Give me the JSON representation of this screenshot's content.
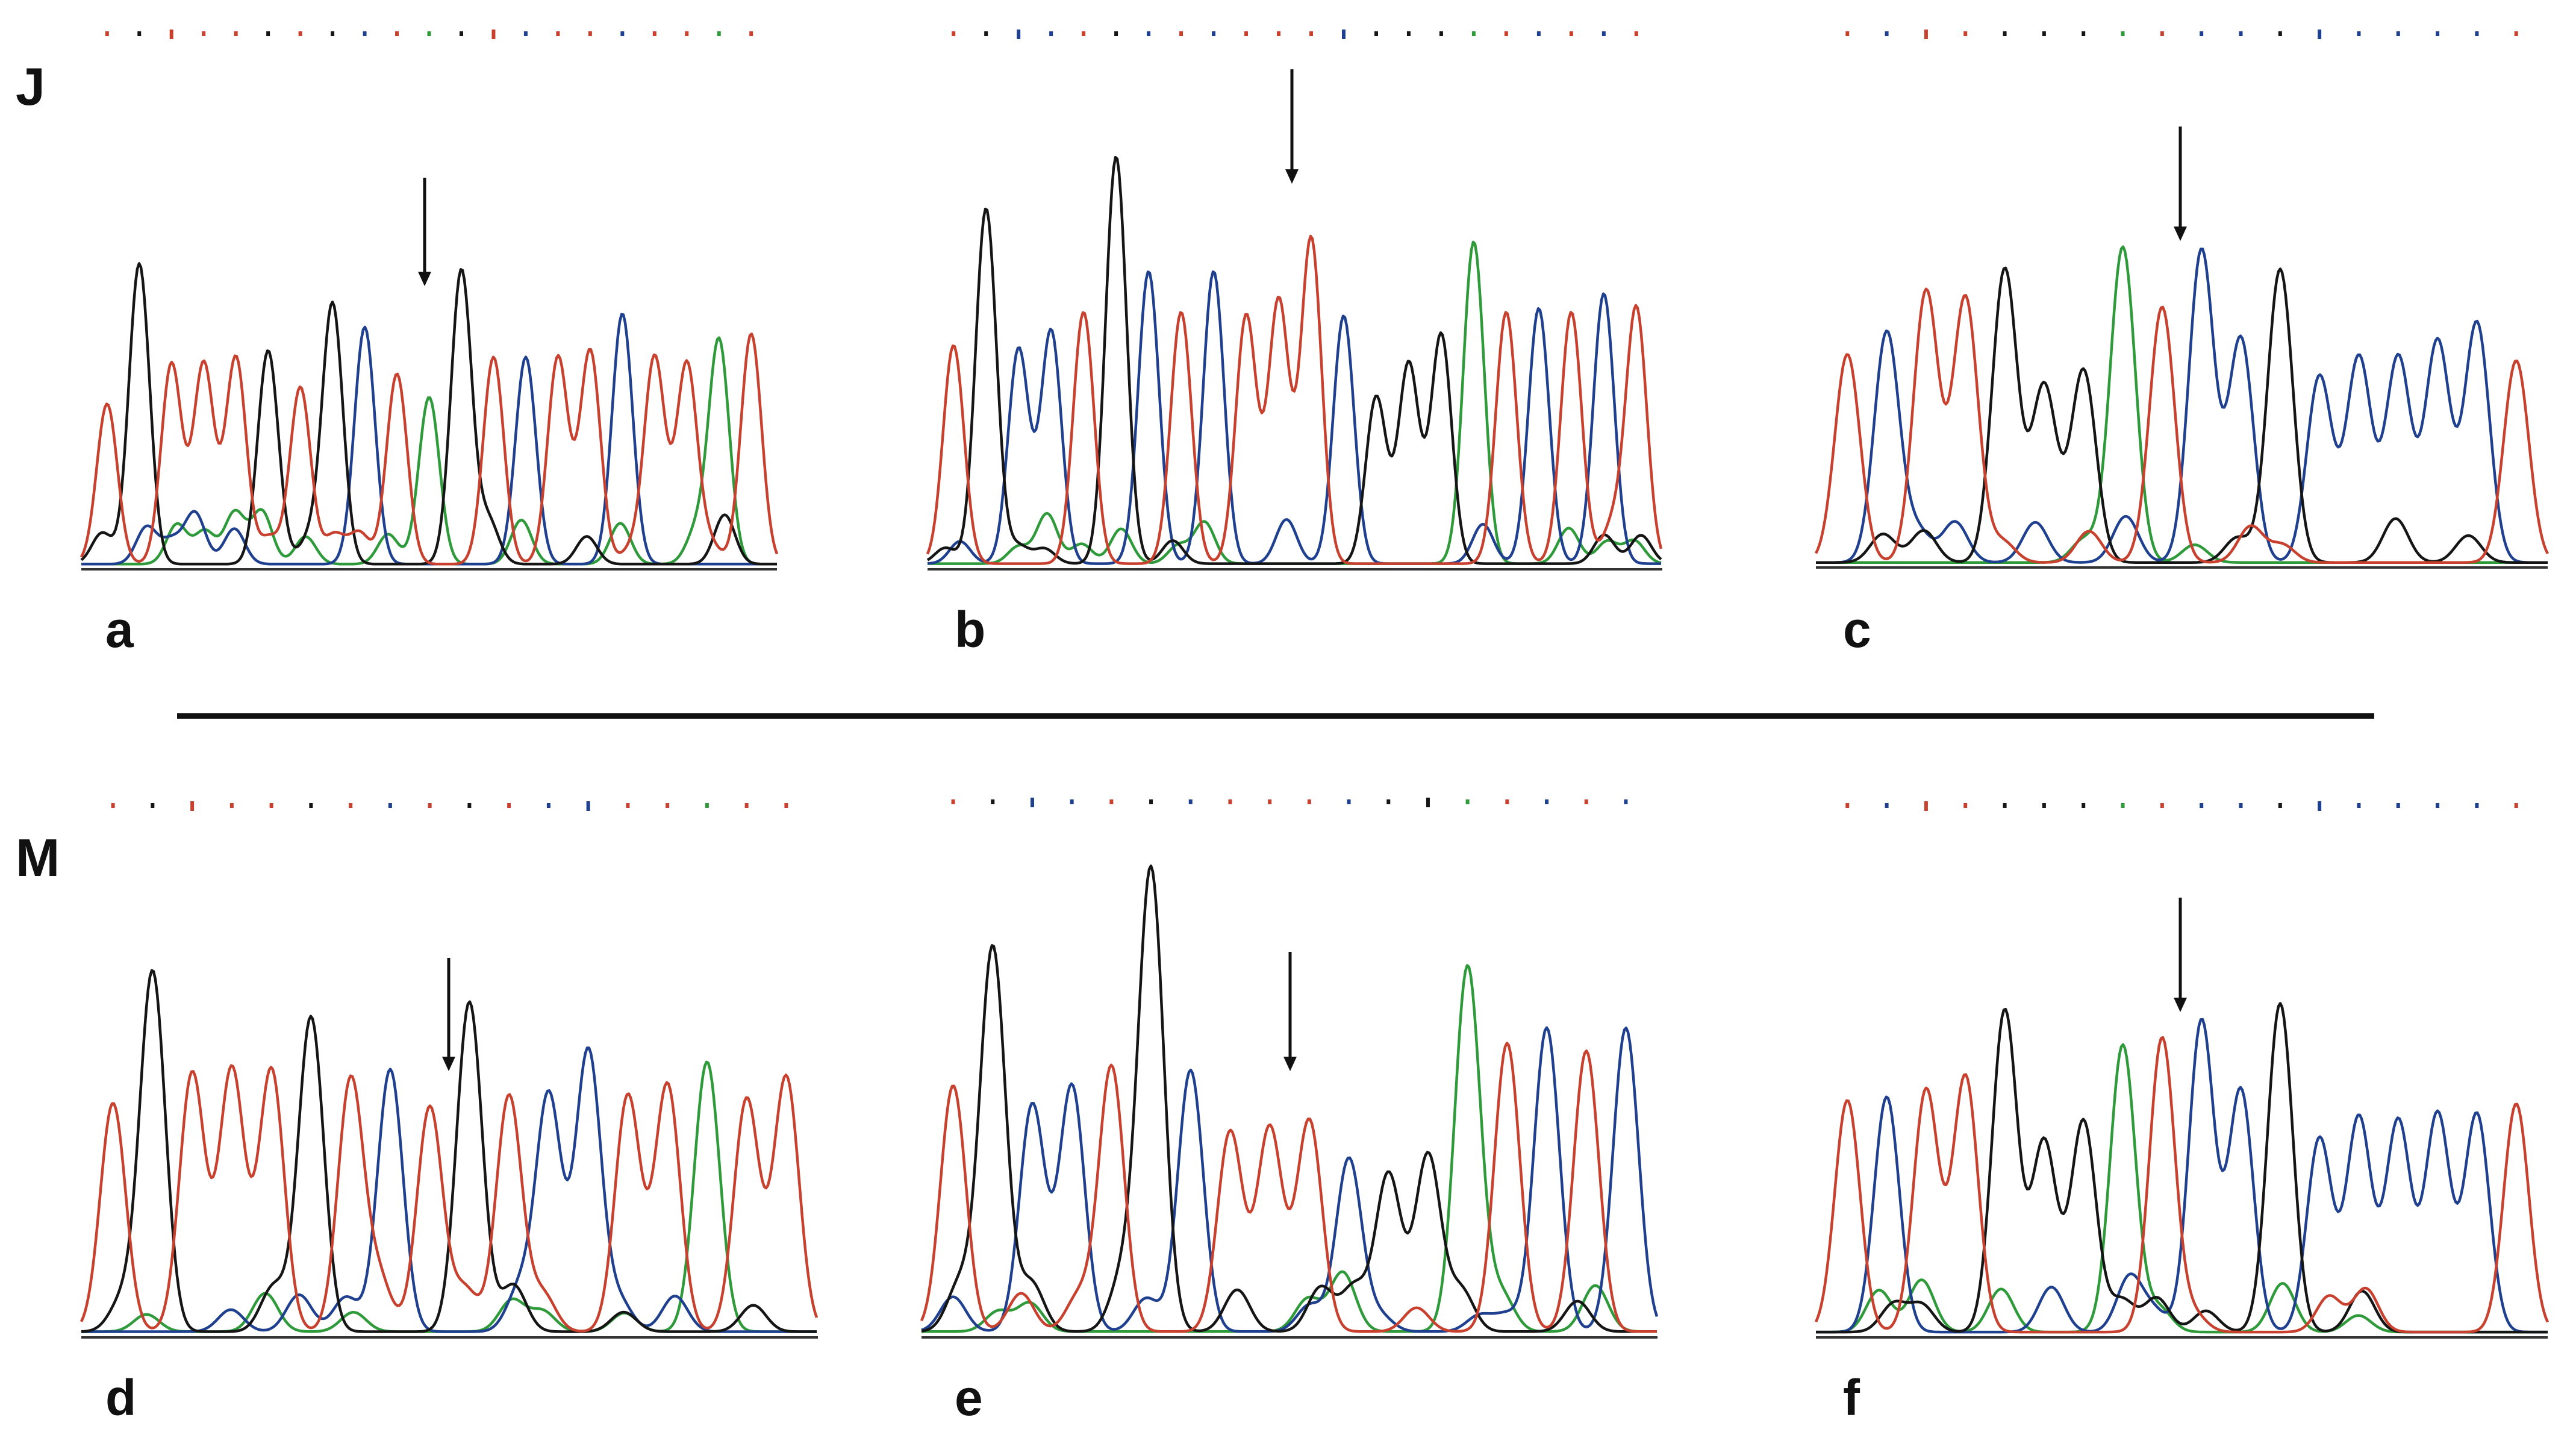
{
  "figure": {
    "rows": [
      {
        "label": "J",
        "panels": [
          "a",
          "b",
          "c"
        ]
      },
      {
        "label": "M",
        "panels": [
          "d",
          "e",
          "f"
        ]
      }
    ]
  },
  "colors": {
    "A": "#2e9a3a",
    "C": "#1f3f8f",
    "G": "#151515",
    "T": "#c8402e",
    "baseline": "#333333",
    "arrow": "#111111",
    "divider": "#111111"
  },
  "icon_names": {
    "arrow": "down-arrow-icon",
    "tick": "base-call-tick-icon"
  }
}
